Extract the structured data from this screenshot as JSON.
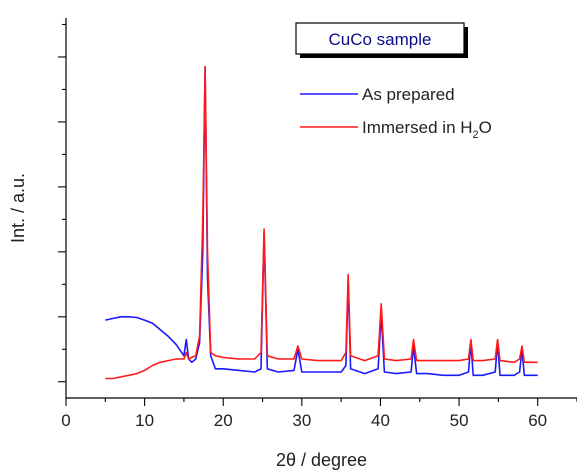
{
  "chart_data": {
    "type": "line",
    "title": "",
    "xlabel": "2θ / degree",
    "ylabel": "Int. / a.u.",
    "xlim": [
      0,
      65
    ],
    "xticks": [
      0,
      10,
      20,
      30,
      40,
      50,
      60
    ],
    "ylim": [
      -0.05,
      1.12
    ],
    "yticks": [
      0,
      0.2,
      0.4,
      0.6,
      0.8,
      1.0
    ],
    "ytick_labels_shown": false,
    "grid": false,
    "inset_label": "CuCo sample",
    "legend_position": "top-right",
    "legend": [
      {
        "text": "As prepared",
        "color": "#1a1aff"
      },
      {
        "text_main": "Immersed in H",
        "text_sub": "2",
        "text_end": "O",
        "color": "#ff1a1a"
      }
    ],
    "series": [
      {
        "name": "As prepared",
        "color": "#1a1aff",
        "x": [
          5,
          6,
          7,
          8,
          9,
          10,
          11,
          12,
          13,
          14,
          15,
          15.3,
          15.6,
          16,
          16.5,
          17,
          17.4,
          17.7,
          18.0,
          18.4,
          19,
          20,
          22,
          24,
          24.8,
          25.2,
          25.6,
          27,
          29,
          29.5,
          30,
          32,
          35,
          35.6,
          35.9,
          36.2,
          38,
          39.7,
          40.1,
          40.5,
          42,
          43.9,
          44.2,
          44.6,
          46,
          48,
          50,
          51.2,
          51.5,
          51.8,
          53,
          54.6,
          54.9,
          55.2,
          57,
          57.7,
          58.0,
          58.3,
          60
        ],
        "y": [
          0.19,
          0.195,
          0.2,
          0.2,
          0.198,
          0.19,
          0.18,
          0.16,
          0.14,
          0.115,
          0.08,
          0.13,
          0.07,
          0.06,
          0.07,
          0.12,
          0.4,
          0.97,
          0.32,
          0.08,
          0.04,
          0.04,
          0.035,
          0.03,
          0.04,
          0.46,
          0.04,
          0.03,
          0.035,
          0.1,
          0.03,
          0.03,
          0.03,
          0.05,
          0.31,
          0.04,
          0.025,
          0.04,
          0.21,
          0.03,
          0.025,
          0.03,
          0.11,
          0.025,
          0.025,
          0.02,
          0.02,
          0.03,
          0.12,
          0.02,
          0.02,
          0.03,
          0.12,
          0.02,
          0.02,
          0.03,
          0.1,
          0.02,
          0.02
        ]
      },
      {
        "name": "Immersed in H2O",
        "color": "#ff1a1a",
        "x": [
          5,
          6,
          7,
          8,
          9,
          10,
          11,
          12,
          13,
          14,
          15,
          15.3,
          15.6,
          16,
          16.5,
          17,
          17.4,
          17.7,
          18.0,
          18.4,
          19,
          20,
          22,
          24,
          24.8,
          25.2,
          25.6,
          27,
          29,
          29.5,
          30,
          32,
          35,
          35.6,
          35.9,
          36.2,
          38,
          39.7,
          40.1,
          40.5,
          42,
          43.9,
          44.2,
          44.6,
          46,
          48,
          50,
          51.2,
          51.5,
          51.8,
          53,
          54.6,
          54.9,
          55.2,
          57,
          57.7,
          58.0,
          58.3,
          60
        ],
        "y": [
          0.01,
          0.01,
          0.015,
          0.02,
          0.025,
          0.035,
          0.05,
          0.06,
          0.065,
          0.07,
          0.07,
          0.09,
          0.07,
          0.075,
          0.08,
          0.14,
          0.5,
          0.97,
          0.4,
          0.09,
          0.08,
          0.075,
          0.07,
          0.07,
          0.09,
          0.47,
          0.08,
          0.07,
          0.07,
          0.11,
          0.07,
          0.065,
          0.065,
          0.09,
          0.33,
          0.08,
          0.065,
          0.08,
          0.24,
          0.07,
          0.065,
          0.07,
          0.13,
          0.065,
          0.065,
          0.065,
          0.065,
          0.07,
          0.13,
          0.065,
          0.065,
          0.07,
          0.13,
          0.065,
          0.06,
          0.07,
          0.11,
          0.06,
          0.06
        ]
      }
    ]
  }
}
